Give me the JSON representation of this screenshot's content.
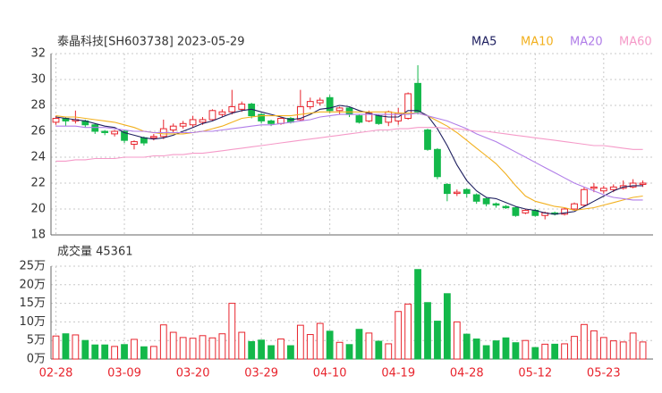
{
  "chart_data": [
    {
      "type": "candlestick",
      "title": "泰晶科技[SH603738] 2023-05-29",
      "open": [
        26.7,
        27.0,
        26.8,
        26.8,
        26.5,
        26.0,
        25.8,
        26.0,
        25.0,
        25.5,
        25.5,
        25.6,
        26.1,
        26.4,
        26.5,
        26.7,
        26.9,
        27.3,
        27.5,
        27.7,
        28.1,
        27.3,
        26.8,
        26.6,
        27.0,
        26.9,
        27.9,
        28.2,
        28.6,
        27.6,
        27.8,
        27.2,
        26.8,
        27.2,
        26.7,
        26.8,
        27.0,
        29.7,
        26.1,
        24.6,
        21.9,
        21.2,
        21.5,
        21.1,
        20.8,
        20.4,
        20.2,
        20.1,
        19.7,
        19.9,
        19.5,
        19.7,
        19.6,
        20.0,
        20.3,
        21.6,
        21.4,
        21.5,
        21.6,
        21.7,
        21.9
      ],
      "high": [
        27.2,
        27.1,
        27.6,
        26.9,
        26.6,
        26.1,
        26.1,
        26.1,
        25.3,
        25.6,
        25.8,
        26.9,
        26.6,
        26.8,
        27.2,
        27.1,
        27.7,
        27.7,
        29.2,
        28.3,
        28.2,
        27.4,
        26.9,
        27.1,
        27.1,
        29.2,
        28.6,
        28.6,
        28.8,
        27.9,
        27.9,
        27.3,
        27.6,
        27.3,
        27.6,
        27.8,
        29.0,
        31.1,
        26.2,
        24.7,
        22.0,
        21.5,
        21.6,
        21.2,
        20.9,
        20.5,
        20.3,
        20.2,
        20.0,
        20.0,
        19.8,
        19.8,
        20.1,
        20.5,
        21.7,
        22.0,
        21.8,
        21.9,
        22.2,
        22.3,
        22.2
      ],
      "low": [
        26.5,
        26.4,
        26.6,
        26.3,
        25.8,
        25.7,
        25.6,
        25.1,
        24.6,
        24.9,
        25.3,
        25.4,
        25.9,
        26.2,
        26.3,
        26.5,
        26.8,
        27.1,
        27.3,
        27.5,
        27.0,
        26.6,
        26.4,
        26.5,
        26.6,
        26.8,
        27.7,
        28.0,
        27.4,
        27.3,
        27.1,
        26.6,
        26.7,
        26.5,
        26.4,
        26.5,
        26.9,
        27.3,
        24.5,
        22.3,
        20.6,
        21.0,
        20.9,
        20.4,
        20.2,
        20.1,
        20.0,
        19.4,
        19.6,
        19.4,
        19.2,
        19.5,
        19.5,
        19.9,
        20.2,
        21.3,
        21.2,
        21.3,
        21.5,
        21.6,
        21.7
      ],
      "close": [
        27.0,
        26.8,
        26.9,
        26.5,
        26.0,
        25.9,
        26.0,
        25.3,
        25.2,
        25.1,
        25.6,
        26.2,
        26.4,
        26.6,
        26.9,
        26.9,
        27.6,
        27.5,
        27.9,
        28.1,
        27.2,
        26.8,
        26.6,
        27.0,
        26.7,
        27.9,
        28.3,
        28.4,
        27.6,
        27.8,
        27.3,
        26.7,
        27.4,
        26.6,
        27.5,
        27.4,
        28.9,
        27.5,
        24.6,
        22.5,
        21.2,
        21.3,
        21.2,
        20.6,
        20.4,
        20.3,
        20.1,
        19.5,
        19.9,
        19.5,
        19.7,
        19.6,
        20.0,
        20.4,
        21.5,
        21.7,
        21.6,
        21.7,
        21.8,
        22.0,
        22.0
      ],
      "up_color": "#e8242d",
      "down_color": "#13b84a",
      "series": [
        {
          "name": "MA5",
          "color": "#1f2060",
          "values": [
            27.1,
            27.0,
            26.9,
            26.8,
            26.6,
            26.4,
            26.3,
            25.9,
            25.7,
            25.5,
            25.4,
            25.5,
            25.7,
            26.0,
            26.3,
            26.6,
            26.8,
            27.1,
            27.4,
            27.6,
            27.7,
            27.5,
            27.3,
            27.1,
            26.9,
            27.0,
            27.3,
            27.7,
            27.8,
            28.0,
            27.9,
            27.6,
            27.4,
            27.2,
            27.1,
            27.1,
            27.6,
            27.6,
            27.2,
            26.2,
            24.9,
            23.4,
            22.2,
            21.4,
            20.9,
            20.8,
            20.5,
            20.2,
            20.0,
            19.9,
            19.7,
            19.6,
            19.7,
            19.8,
            20.2,
            20.6,
            21.0,
            21.4,
            21.7,
            21.8,
            21.8
          ]
        },
        {
          "name": "MA10",
          "color": "#f2b01e",
          "values": [
            27.2,
            27.1,
            27.1,
            27.0,
            26.9,
            26.8,
            26.7,
            26.5,
            26.3,
            26.0,
            25.9,
            25.8,
            25.8,
            25.8,
            25.9,
            26.0,
            26.2,
            26.4,
            26.7,
            27.0,
            27.1,
            27.2,
            27.2,
            27.2,
            27.2,
            27.3,
            27.4,
            27.5,
            27.5,
            27.5,
            27.5,
            27.5,
            27.5,
            27.5,
            27.5,
            27.4,
            27.4,
            27.4,
            27.2,
            26.8,
            26.4,
            25.9,
            25.3,
            24.7,
            24.1,
            23.5,
            22.7,
            21.8,
            21.0,
            20.6,
            20.4,
            20.2,
            20.1,
            19.9,
            20.0,
            20.1,
            20.3,
            20.5,
            20.7,
            20.9,
            21.0
          ]
        },
        {
          "name": "MA20",
          "color": "#b07de8",
          "values": [
            26.4,
            26.4,
            26.4,
            26.3,
            26.3,
            26.3,
            26.2,
            26.1,
            26.0,
            26.0,
            25.9,
            25.9,
            25.9,
            25.9,
            25.9,
            26.0,
            26.0,
            26.1,
            26.2,
            26.3,
            26.4,
            26.5,
            26.5,
            26.6,
            26.7,
            26.8,
            26.9,
            27.1,
            27.2,
            27.3,
            27.3,
            27.3,
            27.3,
            27.3,
            27.3,
            27.3,
            27.3,
            27.4,
            27.2,
            27.0,
            26.8,
            26.5,
            26.2,
            25.8,
            25.5,
            25.2,
            24.8,
            24.4,
            24.0,
            23.6,
            23.2,
            22.8,
            22.4,
            22.0,
            21.7,
            21.4,
            21.1,
            20.9,
            20.8,
            20.7,
            20.7
          ]
        },
        {
          "name": "MA60",
          "color": "#f59ac8",
          "values": [
            23.7,
            23.7,
            23.8,
            23.8,
            23.9,
            23.9,
            23.9,
            24.0,
            24.0,
            24.0,
            24.1,
            24.1,
            24.2,
            24.2,
            24.3,
            24.3,
            24.4,
            24.5,
            24.6,
            24.7,
            24.8,
            24.9,
            25.0,
            25.1,
            25.2,
            25.3,
            25.4,
            25.5,
            25.6,
            25.7,
            25.8,
            25.9,
            26.0,
            26.1,
            26.1,
            26.2,
            26.2,
            26.3,
            26.3,
            26.3,
            26.2,
            26.2,
            26.1,
            26.0,
            26.0,
            25.9,
            25.8,
            25.7,
            25.6,
            25.5,
            25.4,
            25.3,
            25.2,
            25.1,
            25.0,
            24.9,
            24.9,
            24.8,
            24.7,
            24.6,
            24.6
          ]
        }
      ],
      "ylim": [
        18,
        32
      ],
      "yticks": [
        18,
        20,
        22,
        24,
        26,
        28,
        30,
        32
      ],
      "grid": true
    },
    {
      "type": "bar",
      "title": "成交量 45361",
      "categories": [
        "02-28",
        null,
        null,
        null,
        null,
        null,
        null,
        "03-09",
        null,
        null,
        null,
        null,
        null,
        null,
        "03-20",
        null,
        null,
        null,
        null,
        null,
        null,
        "03-29",
        null,
        null,
        null,
        null,
        null,
        null,
        "04-10",
        null,
        null,
        null,
        null,
        null,
        null,
        "04-19",
        null,
        null,
        null,
        null,
        null,
        null,
        "04-28",
        null,
        null,
        null,
        null,
        null,
        null,
        "05-12",
        null,
        null,
        null,
        null,
        null,
        null,
        "05-23",
        null,
        null,
        null,
        null
      ],
      "values": [
        6.2,
        6.8,
        6.5,
        5.0,
        3.8,
        3.8,
        3.4,
        3.9,
        5.3,
        3.3,
        3.4,
        9.2,
        7.2,
        5.8,
        5.6,
        6.3,
        5.7,
        6.8,
        15.0,
        7.2,
        4.7,
        5.1,
        3.6,
        5.4,
        3.6,
        9.1,
        6.6,
        9.6,
        7.5,
        4.5,
        3.9,
        8.0,
        7.0,
        4.8,
        4.1,
        12.8,
        14.8,
        24.1,
        15.2,
        10.2,
        17.6,
        10.0,
        6.7,
        5.4,
        3.6,
        4.9,
        5.7,
        4.4,
        5.0,
        3.1,
        4.0,
        4.0,
        4.1,
        6.1,
        9.3,
        7.6,
        5.8,
        4.9,
        4.6,
        7.0,
        4.6
      ],
      "ylim": [
        0,
        25
      ],
      "yticks": [
        {
          "value": 0,
          "label": "0万"
        },
        {
          "value": 5,
          "label": "5万"
        },
        {
          "value": 10,
          "label": "10万"
        },
        {
          "value": 15,
          "label": "15万"
        },
        {
          "value": 20,
          "label": "20万"
        },
        {
          "value": 25,
          "label": "25万"
        }
      ],
      "grid": true
    }
  ]
}
